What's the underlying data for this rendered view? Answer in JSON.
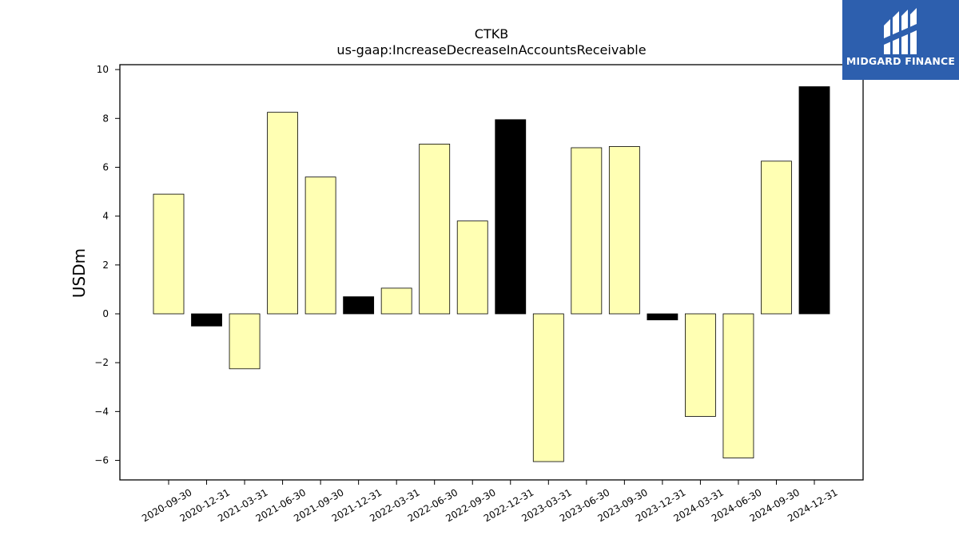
{
  "brand": {
    "name": "MIDGARD FINANCE",
    "logo_icon": "midgard-m-mark-icon",
    "background_color": "#2d5fae"
  },
  "chart_data": {
    "type": "bar",
    "title": "CTKB",
    "subtitle": "us-gaap:IncreaseDecreaseInAccountsReceivable",
    "xlabel": "",
    "ylabel": "USDm",
    "ylim": [
      -6.8,
      10.2
    ],
    "yticks": [
      -6,
      -4,
      -2,
      0,
      2,
      4,
      6,
      8,
      10
    ],
    "ytick_labels": [
      "−6",
      "−4",
      "−2",
      "0",
      "2",
      "4",
      "6",
      "8",
      "10"
    ],
    "categories": [
      "2020-09-30",
      "2020-12-31",
      "2021-03-31",
      "2021-06-30",
      "2021-09-30",
      "2021-12-31",
      "2022-03-31",
      "2022-06-30",
      "2022-09-30",
      "2022-12-31",
      "2023-03-31",
      "2023-06-30",
      "2023-09-30",
      "2023-12-31",
      "2024-03-31",
      "2024-06-30",
      "2024-09-30",
      "2024-12-31"
    ],
    "values": [
      4.9,
      -0.5,
      -2.25,
      8.25,
      5.6,
      0.7,
      1.05,
      6.95,
      3.8,
      7.95,
      -6.05,
      6.8,
      6.85,
      -0.25,
      -4.2,
      -5.9,
      6.25,
      9.3
    ],
    "bar_colors": [
      "#ffffb3",
      "#000000",
      "#ffffb3",
      "#ffffb3",
      "#ffffb3",
      "#000000",
      "#ffffb3",
      "#ffffb3",
      "#ffffb3",
      "#000000",
      "#ffffb3",
      "#ffffb3",
      "#ffffb3",
      "#000000",
      "#ffffb3",
      "#ffffb3",
      "#ffffb3",
      "#000000"
    ],
    "grid": false,
    "legend": "none"
  }
}
